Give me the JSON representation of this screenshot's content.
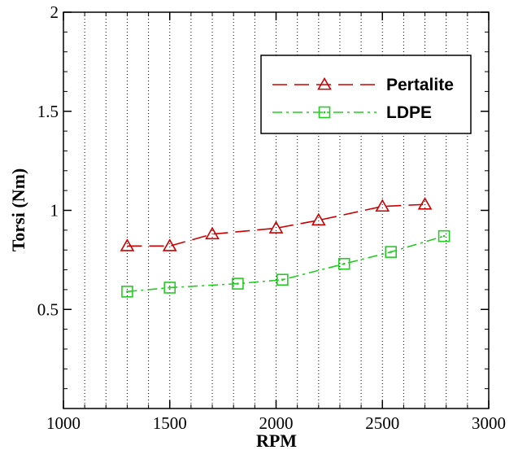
{
  "chart_data": {
    "type": "line",
    "xlabel": "RPM",
    "ylabel": "Torsi (Nm)",
    "xlim": [
      1000,
      3000
    ],
    "ylim": [
      0,
      2
    ],
    "xticks": [
      1000,
      1500,
      2000,
      2500,
      3000
    ],
    "xtick_labels": [
      "1000",
      "1500",
      "2000",
      "2500",
      "3000"
    ],
    "yticks": [
      0.5,
      1,
      1.5,
      2
    ],
    "ytick_labels": [
      "0.5",
      "1",
      "1.5",
      "2"
    ],
    "x_gridlines": [
      1100,
      1200,
      1300,
      1400,
      1500,
      1600,
      1700,
      1800,
      1900,
      2000,
      2100,
      2200,
      2300,
      2400,
      2500,
      2600,
      2700,
      2800,
      2900
    ],
    "grid": "vertical dotted",
    "legend_position": "top-right",
    "series": [
      {
        "name": "Pertalite",
        "color": "#cc0000",
        "marker": "triangle",
        "line_style": "dashed",
        "x": [
          1300,
          1500,
          1700,
          2000,
          2200,
          2500,
          2700
        ],
        "y": [
          0.82,
          0.82,
          0.88,
          0.91,
          0.95,
          1.02,
          1.03
        ]
      },
      {
        "name": "LDPE",
        "color": "#22cc22",
        "marker": "square",
        "line_style": "dash-dot",
        "x": [
          1300,
          1500,
          1820,
          2030,
          2320,
          2540,
          2790
        ],
        "y": [
          0.59,
          0.61,
          0.63,
          0.65,
          0.73,
          0.79,
          0.87
        ]
      }
    ]
  }
}
